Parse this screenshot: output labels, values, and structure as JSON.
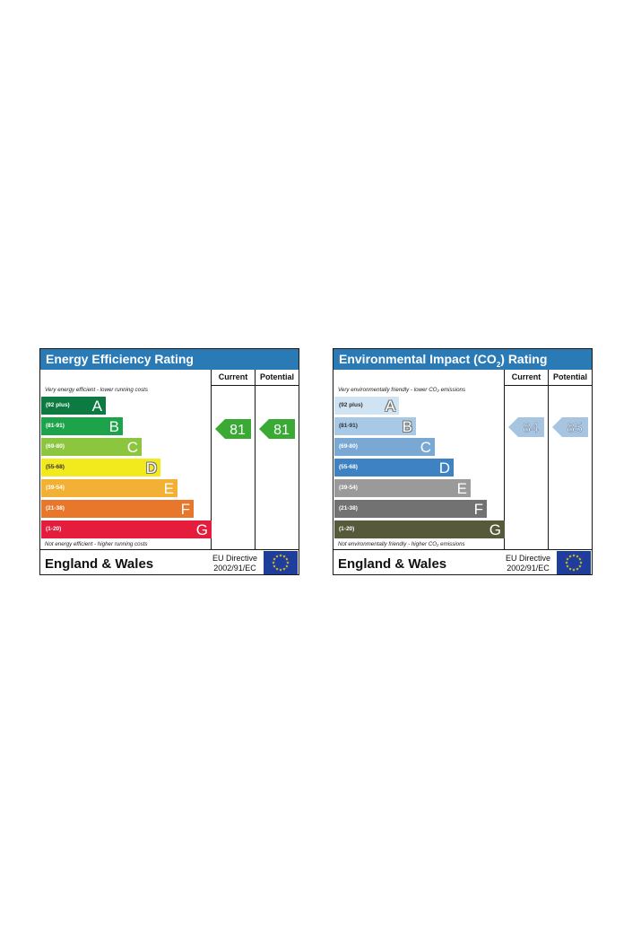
{
  "charts": [
    {
      "id": "energy",
      "title_main": "Energy Efficiency Rating",
      "title_sub": "",
      "title_tail": "",
      "col_current": "Current",
      "col_potential": "Potential",
      "note_top": "Very energy efficient - lower running costs",
      "note_bottom": "Not energy efficient - higher running costs",
      "region": "England & Wales",
      "directive_line1": "EU Directive",
      "directive_line2": "2002/91/EC",
      "flag_icon": "eu-flag-icon",
      "current_color": "#3aaa35",
      "potential_color": "#3aaa35",
      "bands": [
        {
          "letter": "A",
          "range": "(92 plus)",
          "color": "#0d7b41"
        },
        {
          "letter": "B",
          "range": "(81-91)",
          "color": "#1da44a"
        },
        {
          "letter": "C",
          "range": "(69-80)",
          "color": "#8cc63f"
        },
        {
          "letter": "D",
          "range": "(55-68)",
          "color": "#f2ea1d"
        },
        {
          "letter": "E",
          "range": "(39-54)",
          "color": "#f2b134"
        },
        {
          "letter": "F",
          "range": "(21-38)",
          "color": "#e8762b"
        },
        {
          "letter": "G",
          "range": "(1-20)",
          "color": "#e31d3b"
        }
      ]
    },
    {
      "id": "env",
      "title_main": "Environmental Impact (CO",
      "title_sub": "2",
      "title_tail": ") Rating",
      "col_current": "Current",
      "col_potential": "Potential",
      "note_top": "Very environmentally friendly - lower CO₂ emissions",
      "note_bottom": "Not environmentally friendly - higher CO₂ emissions",
      "region": "England & Wales",
      "directive_line1": "EU Directive",
      "directive_line2": "2002/91/EC",
      "flag_icon": "eu-flag-icon",
      "current_color": "#a7c4e0",
      "potential_color": "#a7c4e0",
      "bands": [
        {
          "letter": "A",
          "range": "(92 plus)",
          "color": "#cfe3f3"
        },
        {
          "letter": "B",
          "range": "(81-91)",
          "color": "#a7c9e6"
        },
        {
          "letter": "C",
          "range": "(69-80)",
          "color": "#78a8d3"
        },
        {
          "letter": "D",
          "range": "(55-68)",
          "color": "#3f82c4"
        },
        {
          "letter": "E",
          "range": "(39-54)",
          "color": "#9a9a9a"
        },
        {
          "letter": "F",
          "range": "(21-38)",
          "color": "#727272"
        },
        {
          "letter": "G",
          "range": "(1-20)",
          "color": "#575a3a"
        }
      ]
    }
  ],
  "chart_data": [
    {
      "type": "bar",
      "title": "Energy Efficiency Rating",
      "categories": [
        "A",
        "B",
        "C",
        "D",
        "E",
        "F",
        "G"
      ],
      "ranges": [
        "(92 plus)",
        "(81-91)",
        "(69-80)",
        "(55-68)",
        "(39-54)",
        "(21-38)",
        "(1-20)"
      ],
      "current": 81,
      "potential": 81
    },
    {
      "type": "bar",
      "title": "Environmental Impact (CO2) Rating",
      "categories": [
        "A",
        "B",
        "C",
        "D",
        "E",
        "F",
        "G"
      ],
      "ranges": [
        "(92 plus)",
        "(81-91)",
        "(69-80)",
        "(55-68)",
        "(39-54)",
        "(21-38)",
        "(1-20)"
      ],
      "current": 84,
      "potential": 85
    }
  ]
}
